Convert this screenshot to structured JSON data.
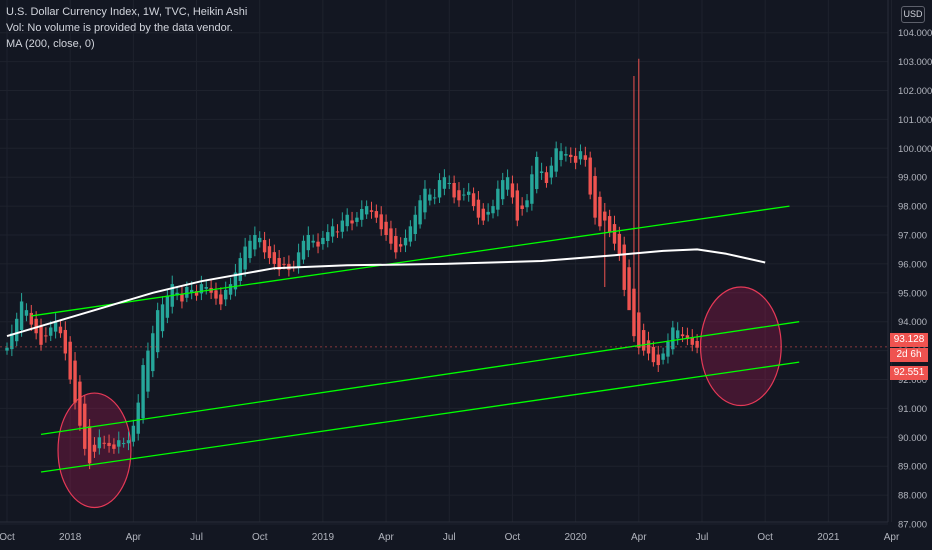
{
  "legend": {
    "title": "U.S. Dollar Currency Index, 1W, TVC, Heikin Ashi",
    "vol": "Vol: No volume is provided by the data vendor.",
    "ma": "MA (200, close, 0)"
  },
  "currency_button": "USD",
  "price_tags": {
    "last_price": "93.128",
    "countdown": "2d 6h",
    "lower_line_price": "92.551"
  },
  "colors": {
    "background": "#131722",
    "up_candle": "#26a69a",
    "down_candle": "#ef5350",
    "trend_line": "#00ff00",
    "moving_average": "#ffffff",
    "highlight_ellipse": "#c2185b"
  },
  "chart_data": {
    "type": "candlestick",
    "ylim": [
      87.0,
      104.0
    ],
    "y_ticks": [
      "87.000",
      "88.000",
      "89.000",
      "90.000",
      "91.000",
      "92.000",
      "93.000",
      "94.000",
      "95.000",
      "96.000",
      "97.000",
      "98.000",
      "99.000",
      "100.000",
      "101.000",
      "102.000",
      "103.000",
      "104.000"
    ],
    "x_ticks": [
      {
        "label": "Oct",
        "t": 0
      },
      {
        "label": "2018",
        "t": 13
      },
      {
        "label": "Apr",
        "t": 26
      },
      {
        "label": "Jul",
        "t": 39
      },
      {
        "label": "Oct",
        "t": 52
      },
      {
        "label": "2019",
        "t": 65
      },
      {
        "label": "Apr",
        "t": 78
      },
      {
        "label": "Jul",
        "t": 91
      },
      {
        "label": "Oct",
        "t": 104
      },
      {
        "label": "2020",
        "t": 117
      },
      {
        "label": "Apr",
        "t": 130
      },
      {
        "label": "Jul",
        "t": 143
      },
      {
        "label": "Oct",
        "t": 156
      },
      {
        "label": "2021",
        "t": 169
      },
      {
        "label": "Apr",
        "t": 182
      }
    ],
    "closes": [
      93.1,
      93.6,
      94.1,
      94.7,
      94.4,
      93.9,
      93.6,
      93.2,
      93.5,
      93.8,
      94.0,
      93.6,
      92.9,
      92.0,
      91.2,
      90.4,
      89.6,
      89.1,
      89.5,
      90.0,
      89.8,
      89.7,
      89.6,
      89.9,
      89.8,
      89.9,
      90.4,
      91.2,
      92.5,
      93.0,
      93.6,
      94.4,
      94.6,
      94.9,
      95.3,
      95.0,
      94.7,
      95.2,
      95.1,
      94.9,
      95.3,
      95.2,
      95.0,
      94.8,
      94.6,
      95.1,
      95.3,
      95.7,
      96.2,
      96.6,
      96.8,
      97.0,
      96.9,
      96.4,
      96.2,
      96.0,
      95.8,
      96.0,
      95.8,
      95.9,
      96.4,
      96.8,
      97.0,
      96.8,
      96.6,
      96.9,
      97.1,
      97.3,
      97.1,
      97.5,
      97.7,
      97.4,
      97.6,
      97.9,
      98.0,
      97.8,
      97.6,
      97.2,
      97.0,
      96.7,
      96.4,
      96.6,
      96.9,
      97.3,
      97.7,
      98.2,
      98.6,
      98.4,
      98.3,
      98.9,
      99.0,
      98.8,
      98.3,
      98.2,
      98.4,
      98.5,
      98.0,
      97.6,
      97.5,
      97.8,
      98.0,
      98.6,
      98.9,
      99.0,
      98.3,
      97.5,
      97.9,
      98.2,
      99.1,
      99.7,
      99.2,
      98.8,
      99.4,
      100.0,
      99.9,
      99.8,
      99.7,
      99.5,
      99.9,
      99.6,
      98.4,
      97.6,
      97.3,
      97.5,
      97.1,
      96.7,
      96.3,
      95.1,
      94.4,
      93.5,
      93.1,
      93.0,
      92.9,
      92.6,
      92.5,
      92.9,
      93.3,
      93.8,
      93.7,
      93.5,
      93.4,
      93.2,
      93.1
    ],
    "moving_average": [
      [
        0,
        93.5
      ],
      [
        10,
        94.0
      ],
      [
        20,
        94.5
      ],
      [
        30,
        95.0
      ],
      [
        40,
        95.4
      ],
      [
        55,
        95.85
      ],
      [
        70,
        95.95
      ],
      [
        90,
        96.0
      ],
      [
        110,
        96.1
      ],
      [
        125,
        96.3
      ],
      [
        135,
        96.45
      ],
      [
        142,
        96.5
      ],
      [
        148,
        96.35
      ],
      [
        152,
        96.2
      ],
      [
        156,
        96.05
      ]
    ],
    "trend_lines": [
      {
        "t1": 5,
        "p1": 94.2,
        "t2": 161,
        "p2": 98.0
      },
      {
        "t1": 7,
        "p1": 90.1,
        "t2": 163,
        "p2": 94.0
      },
      {
        "t1": 7,
        "p1": 88.8,
        "t2": 163,
        "p2": 92.6
      }
    ],
    "highlight_ellipses": [
      {
        "t": 18,
        "p": 89.55,
        "rt": 7.5,
        "rp": 1.98
      },
      {
        "t": 151,
        "p": 93.15,
        "rt": 8.3,
        "rp": 2.05
      }
    ],
    "current_price": 93.128
  }
}
